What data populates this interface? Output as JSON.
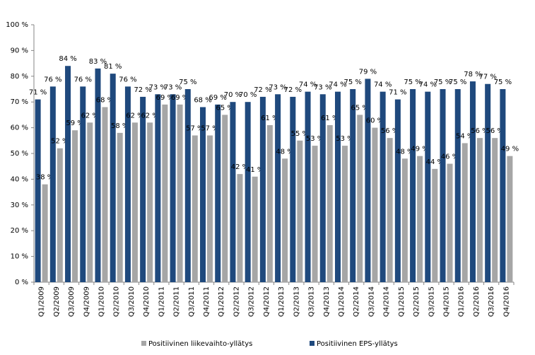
{
  "chart_data": {
    "type": "bar",
    "categories": [
      "Q1/2009",
      "Q2/2009",
      "Q3/2009",
      "Q4/2009",
      "Q1/2010",
      "Q2/2010",
      "Q3/2010",
      "Q4/2010",
      "Q1/2011",
      "Q2/2011",
      "Q3/2011",
      "Q4/2011",
      "Q1/2012",
      "Q2/2012",
      "Q3/2012",
      "Q4/2012",
      "Q1/2013",
      "Q2/2013",
      "Q3/2013",
      "Q4/2013",
      "Q1/2014",
      "Q2/2014",
      "Q3/2014",
      "Q4/2014",
      "Q1/2015",
      "Q2/2015",
      "Q3/2015",
      "Q4/2015",
      "Q1/2016",
      "Q2/2016",
      "Q3/2016",
      "Q4/2016"
    ],
    "series": [
      {
        "name": "Positiivinen liikevaihto-yllätys",
        "color": "#a6a6a6",
        "values": [
          38,
          52,
          59,
          62,
          68,
          58,
          62,
          62,
          69,
          69,
          57,
          57,
          65,
          42,
          41,
          61,
          48,
          55,
          53,
          61,
          53,
          65,
          60,
          56,
          48,
          49,
          44,
          46,
          54,
          56,
          56,
          49
        ],
        "value_labels": [
          "38 %",
          "52 %",
          "59 %",
          "62 %",
          "68 %",
          "58 %",
          "62 %",
          "62 %",
          "69 %",
          "69 %",
          "57 %",
          "57 %",
          "65 %",
          "42 %",
          "41 %",
          "61 %",
          "48 %",
          "55 %",
          "53 %",
          "61 %",
          "53 %",
          "65 %",
          "60 %",
          "56 %",
          "48 %",
          "49 %",
          "44 %",
          "46 %",
          "54 %",
          "56 %",
          "56 %",
          "49 %"
        ]
      },
      {
        "name": "Positiivinen EPS-yllätys",
        "color": "#1f497d",
        "values": [
          71,
          76,
          84,
          76,
          83,
          81,
          76,
          72,
          73,
          73,
          75,
          68,
          69,
          70,
          70,
          72,
          73,
          72,
          74,
          73,
          74,
          75,
          79,
          74,
          71,
          75,
          74,
          75,
          75,
          78,
          77,
          75
        ],
        "value_labels": [
          "71 %",
          "76 %",
          "84 %",
          "76 %",
          "83 %",
          "81 %",
          "76 %",
          "72 %",
          "73 %",
          "73 %",
          "75 %",
          "68 %",
          "69 %",
          "70 %",
          "70 %",
          "72 %",
          "73 %",
          "72 %",
          "74 %",
          "73 %",
          "74 %",
          "75 %",
          "79 %",
          "74 %",
          "71 %",
          "75 %",
          "74 %",
          "75 %",
          "75 %",
          "78 %",
          "77 %",
          "75 %"
        ]
      }
    ],
    "ylim": [
      0,
      100
    ],
    "yticks": [
      {
        "value": 0,
        "label": "0 %"
      },
      {
        "value": 10,
        "label": "10 %"
      },
      {
        "value": 20,
        "label": "20 %"
      },
      {
        "value": 30,
        "label": "30 %"
      },
      {
        "value": 40,
        "label": "40 %"
      },
      {
        "value": 50,
        "label": "50 %"
      },
      {
        "value": 60,
        "label": "60 %"
      },
      {
        "value": 70,
        "label": "70 %"
      },
      {
        "value": 80,
        "label": "80 %"
      },
      {
        "value": 90,
        "label": "90 %"
      },
      {
        "value": 100,
        "label": "100 %"
      }
    ],
    "grid": false
  }
}
